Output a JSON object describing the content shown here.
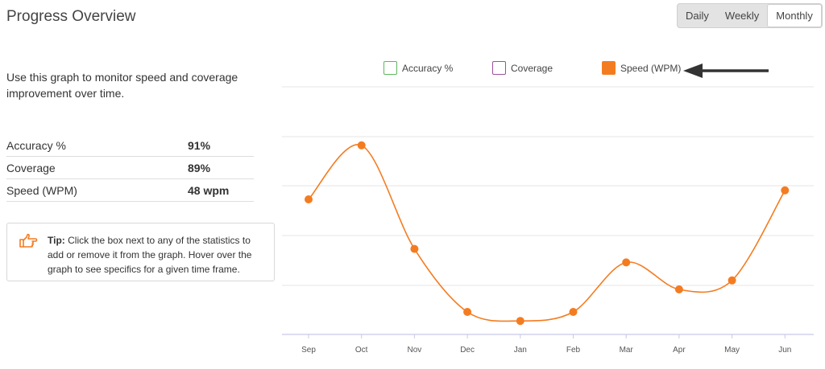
{
  "header": {
    "title": "Progress Overview"
  },
  "range": {
    "options": [
      "Daily",
      "Weekly",
      "Monthly"
    ],
    "selected": "Monthly"
  },
  "description": "Use this graph to monitor speed and coverage improvement over time.",
  "stats": [
    {
      "label": "Accuracy %",
      "value": "91%"
    },
    {
      "label": "Coverage",
      "value": "89%"
    },
    {
      "label": "Speed (WPM)",
      "value": "48 wpm"
    }
  ],
  "tip": {
    "icon": "pointing-hand-icon",
    "bold": "Tip:",
    "text": " Click the box next to any of the statistics to add or remove it from the graph. Hover over the graph to see specifics for a given time frame."
  },
  "legend": [
    {
      "label": "Accuracy %",
      "color": "#5cb85c",
      "checked": false
    },
    {
      "label": "Coverage",
      "color": "#9b4f9f",
      "checked": false
    },
    {
      "label": "Speed (WPM)",
      "color": "#f47c20",
      "checked": true
    }
  ],
  "colors": {
    "accent": "#f47c20",
    "grid": "#e5e5e5",
    "axis": "#c8c8e6"
  },
  "chart_data": {
    "type": "line",
    "categories": [
      "Sep",
      "Oct",
      "Nov",
      "Dec",
      "Jan",
      "Feb",
      "Mar",
      "Apr",
      "May",
      "Jun"
    ],
    "series": [
      {
        "name": "Speed (WPM)",
        "values": [
          41,
          53,
          30,
          16,
          14,
          16,
          27,
          21,
          23,
          43
        ]
      }
    ],
    "ylim": [
      11,
      66
    ],
    "grid": true,
    "legend_position": "top"
  }
}
